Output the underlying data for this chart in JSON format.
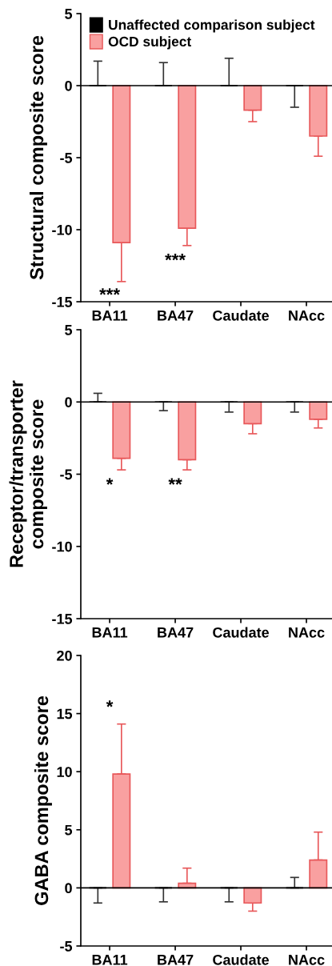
{
  "chart_data": [
    {
      "type": "bar",
      "ylabel": "Structural composite score",
      "categories": [
        "BA11",
        "BA47",
        "Caudate",
        "NAcc"
      ],
      "ylim": [
        -15,
        5
      ],
      "yticks": [
        -15,
        -10,
        -5,
        0,
        5
      ],
      "legend": "top left",
      "grid": false,
      "series": [
        {
          "name": "Unaffected comparison subject",
          "color": "#000000",
          "values": [
            0,
            0,
            0,
            0
          ],
          "errors": [
            [
              0,
              1.7
            ],
            [
              0,
              1.6
            ],
            [
              0,
              1.9
            ],
            [
              -1.5,
              0
            ]
          ]
        },
        {
          "name": "OCD subject",
          "color": "#f9a0a0",
          "values": [
            -10.9,
            -9.9,
            -1.7,
            -3.5
          ],
          "errors": [
            [
              -13.6,
              -10.9
            ],
            [
              -11.1,
              -9.9
            ],
            [
              -2.5,
              -1.7
            ],
            [
              -4.9,
              -3.5
            ]
          ]
        }
      ],
      "ref_lines": [
        {
          "axis": "y",
          "value": 0,
          "color": "#000000"
        }
      ],
      "annotations": [
        "***",
        "***"
      ]
    },
    {
      "type": "bar",
      "ylabel": "Receptor/transporter\ncomposite score",
      "categories": [
        "BA11",
        "BA47",
        "Caudate",
        "NAcc"
      ],
      "ylim": [
        -15,
        5
      ],
      "yticks": [
        -15,
        -10,
        -5,
        0,
        5
      ],
      "legend": false,
      "grid": false,
      "series": [
        {
          "color": "#000000",
          "values": [
            0,
            0,
            0,
            0
          ],
          "errors": [
            [
              0,
              0.6
            ],
            [
              -0.6,
              0
            ],
            [
              -0.7,
              0
            ],
            [
              -0.7,
              0
            ]
          ]
        },
        {
          "color": "#f9a0a0",
          "values": [
            -3.9,
            -4.0,
            -1.5,
            -1.2
          ],
          "errors": [
            [
              -4.7,
              -3.9
            ],
            [
              -4.7,
              -4.0
            ],
            [
              -2.2,
              -1.5
            ],
            [
              -1.8,
              -1.2
            ]
          ]
        }
      ],
      "ref_lines": [
        {
          "axis": "y",
          "value": 0,
          "color": "#000000"
        }
      ],
      "annotations": [
        "*",
        "**"
      ]
    },
    {
      "type": "bar",
      "ylabel": "GABA composite score",
      "categories": [
        "BA11",
        "BA47",
        "Caudate",
        "NAcc"
      ],
      "ylim": [
        -5,
        20
      ],
      "yticks": [
        -5,
        0,
        5,
        10,
        15,
        20
      ],
      "legend": false,
      "grid": false,
      "series": [
        {
          "color": "#000000",
          "values": [
            0,
            0,
            0,
            0
          ],
          "errors": [
            [
              -1.3,
              0
            ],
            [
              -1.2,
              0
            ],
            [
              -1.2,
              0
            ],
            [
              0,
              0.9
            ]
          ]
        },
        {
          "color": "#f9a0a0",
          "values": [
            9.8,
            0.4,
            -1.3,
            2.4
          ],
          "errors": [
            [
              9.8,
              14.1
            ],
            [
              0.4,
              1.7
            ],
            [
              -2.0,
              -1.3
            ],
            [
              2.4,
              4.8
            ]
          ]
        }
      ],
      "ref_lines": [
        {
          "axis": "y",
          "value": 0,
          "color": "#000000"
        }
      ],
      "annotations": [
        "*"
      ]
    }
  ]
}
